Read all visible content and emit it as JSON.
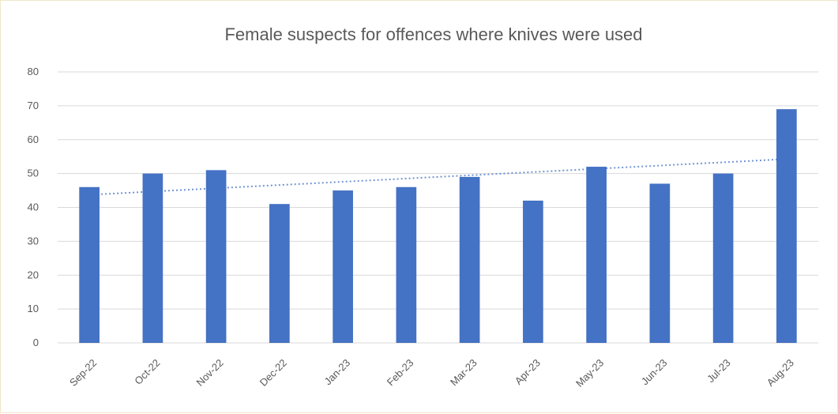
{
  "chart_data": {
    "type": "bar",
    "title": "Female suspects for offences where knives were used",
    "categories": [
      "Sep-22",
      "Oct-22",
      "Nov-22",
      "Dec-22",
      "Jan-23",
      "Feb-23",
      "Mar-23",
      "Apr-23",
      "May-23",
      "Jun-23",
      "Jul-23",
      "Aug-23"
    ],
    "series": [
      {
        "values": [
          46,
          50,
          51,
          41,
          45,
          46,
          49,
          42,
          52,
          47,
          50,
          69
        ]
      }
    ],
    "trendline": {
      "type": "linear",
      "style": "dotted"
    },
    "ylim": [
      0,
      80
    ],
    "yticks": [
      0,
      10,
      20,
      30,
      40,
      50,
      60,
      70,
      80
    ],
    "xlabel": "",
    "ylabel": "",
    "grid": true,
    "legend": "none",
    "colors": {
      "bar": "#4472c4",
      "trend": "#4472c4",
      "grid": "#d9d9d9",
      "text": "#595959"
    }
  }
}
